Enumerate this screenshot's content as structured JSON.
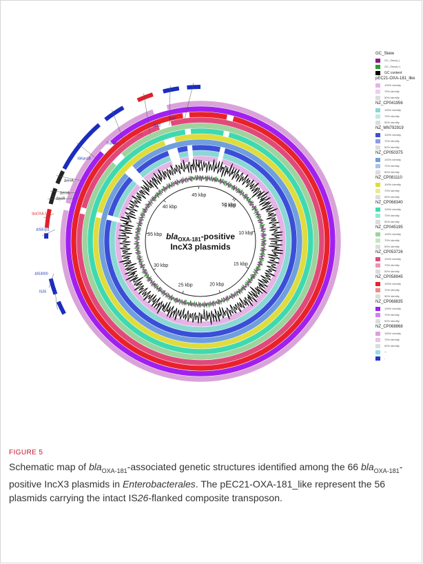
{
  "figure": {
    "center_title_gene": "bla",
    "center_title_sub": "OXA-181",
    "center_title_rest": "-positive",
    "center_title_line2": "IncX3 plasmids",
    "kbp_labels": [
      "5 kbp",
      "10 kbp",
      "15 kbp",
      "20 kbp",
      "25 kbp",
      "30 kbp",
      "35 kbp",
      "40 kbp",
      "45 kbp",
      "50 kbp"
    ],
    "tracks": [
      {
        "name": "NZ_CP068868",
        "color": "#d9a3d9"
      },
      {
        "name": "NZ_CP068835",
        "color": "#a020f0"
      },
      {
        "name": "NZ_CP058945",
        "color": "#e8222a"
      },
      {
        "name": "NZ_CP053726",
        "color": "#e04a7a"
      },
      {
        "name": "NZ_CP045195",
        "color": "#9ed39e"
      },
      {
        "name": "NZ_CP068340",
        "color": "#3fd9b0"
      },
      {
        "name": "NZ_CP081110",
        "color": "#e0dc3c"
      },
      {
        "name": "NZ_CP050375",
        "color": "#6f9fdc"
      },
      {
        "name": "NZ_MN792919",
        "color": "#3a4fd8"
      },
      {
        "name": "NZ_CP041956",
        "color": "#8ad8d4"
      },
      {
        "name": "pEC21-OXA-181_like",
        "color": "#e6b3e6"
      }
    ],
    "gc_colors": {
      "content": "#000000",
      "skew_plus": "#2a9d2a",
      "skew_minus": "#8b1a8b"
    },
    "annotations": [
      {
        "label": "IS26",
        "color": "#1a2dbf",
        "kind": "blue"
      },
      {
        "label": "ΔIS2",
        "color": "#1a2dbf",
        "kind": "blue"
      },
      {
        "label": "qnrS1",
        "color": "#e0202a",
        "kind": "red"
      },
      {
        "label": "Tn3-like",
        "color": "#1a2dbf",
        "kind": "blue"
      },
      {
        "label": "ISKpn19",
        "color": "#1a2dbf",
        "kind": "blue"
      },
      {
        "label": "ΔereA",
        "color": "#222222",
        "kind": "black"
      },
      {
        "label": "ΔereA",
        "color": "#222222",
        "kind": "black"
      },
      {
        "label": "ΔlysR",
        "color": "#222222",
        "kind": "black"
      },
      {
        "label": "blaOXA-181",
        "color": "#e0202a",
        "kind": "red"
      },
      {
        "label": "ΔISEcp1",
        "color": "#1a2dbf",
        "kind": "blue"
      },
      {
        "label": "ΔIS3000",
        "color": "#1a2dbf",
        "kind": "blue"
      },
      {
        "label": "IS26",
        "color": "#1a2dbf",
        "kind": "blue"
      }
    ]
  },
  "legend": {
    "sections": [
      {
        "title": "GC_Skew",
        "items": [
          {
            "label": "GC_Skew(-)",
            "color": "#8b1a8b",
            "big": false
          },
          {
            "label": "GC_Skew(+)",
            "color": "#2a9d2a",
            "big": false
          },
          {
            "label": "GC content",
            "color": "#000000",
            "big": true
          }
        ]
      },
      {
        "title": "pEC21-OXA-181_like",
        "items": [
          {
            "label": "100% identity",
            "color": "#e6b3e6"
          },
          {
            "label": "70% identity",
            "color": "#efcdef"
          },
          {
            "label": "50% identity",
            "color": "#dcdcdc"
          }
        ]
      },
      {
        "title": "NZ_CP041956",
        "items": [
          {
            "label": "100% identity",
            "color": "#8ad8d4"
          },
          {
            "label": "70% identity",
            "color": "#bfe8e5"
          },
          {
            "label": "50% identity",
            "color": "#dcdcdc"
          }
        ]
      },
      {
        "title": "NZ_MN792919",
        "items": [
          {
            "label": "100% identity",
            "color": "#3a4fd8"
          },
          {
            "label": "70% identity",
            "color": "#8f9ae5"
          },
          {
            "label": "50% identity",
            "color": "#dcdcdc"
          }
        ]
      },
      {
        "title": "NZ_CP050375",
        "items": [
          {
            "label": "100% identity",
            "color": "#6f9fdc"
          },
          {
            "label": "70% identity",
            "color": "#a9c3e8"
          },
          {
            "label": "50% identity",
            "color": "#dcdcdc"
          }
        ]
      },
      {
        "title": "NZ_CP081110",
        "items": [
          {
            "label": "100% identity",
            "color": "#e0dc3c"
          },
          {
            "label": "70% identity",
            "color": "#ece98c"
          },
          {
            "label": "50% identity",
            "color": "#dcdcdc"
          }
        ]
      },
      {
        "title": "NZ_CP068340",
        "items": [
          {
            "label": "100% identity",
            "color": "#3fd9b0"
          },
          {
            "label": "70% identity",
            "color": "#92e8cf"
          },
          {
            "label": "50% identity",
            "color": "#dcdcdc"
          }
        ]
      },
      {
        "title": "NZ_CP045195",
        "items": [
          {
            "label": "100% identity",
            "color": "#9ed39e"
          },
          {
            "label": "70% identity",
            "color": "#c5e4c5"
          },
          {
            "label": "50% identity",
            "color": "#dcdcdc"
          }
        ]
      },
      {
        "title": "NZ_CP053726",
        "items": [
          {
            "label": "100% identity",
            "color": "#e04a7a"
          },
          {
            "label": "70% identity",
            "color": "#eb94b0"
          },
          {
            "label": "50% identity",
            "color": "#dcdcdc"
          }
        ]
      },
      {
        "title": "NZ_CP058945",
        "items": [
          {
            "label": "100% identity",
            "color": "#e8222a"
          },
          {
            "label": "70% identity",
            "color": "#ee8a8d"
          },
          {
            "label": "50% identity",
            "color": "#dcdcdc"
          }
        ]
      },
      {
        "title": "NZ_CP068835",
        "items": [
          {
            "label": "100% identity",
            "color": "#a020f0"
          },
          {
            "label": "70% identity",
            "color": "#c986f3"
          },
          {
            "label": "50% identity",
            "color": "#dcdcdc"
          }
        ]
      },
      {
        "title": "NZ_CP068868",
        "items": [
          {
            "label": "100% identity",
            "color": "#d9a3d9"
          },
          {
            "label": "70% identity",
            "color": "#e7c6e7"
          },
          {
            "label": "50% identity",
            "color": "#dcdcdc"
          }
        ]
      }
    ],
    "strand_items": [
      {
        "label": "+",
        "color": "#8ee0e6"
      },
      {
        "label": "-",
        "color": "#2b34c8"
      }
    ]
  },
  "caption": {
    "label": "FIGURE 5",
    "text": "Schematic map of blaOXA-181-associated genetic structures identified among the 66 blaOXA-181-positive IncX3 plasmids in Enterobacterales. The pEC21-OXA-181_like represent the 56 plasmids carrying the intact IS26-flanked composite transposon."
  }
}
